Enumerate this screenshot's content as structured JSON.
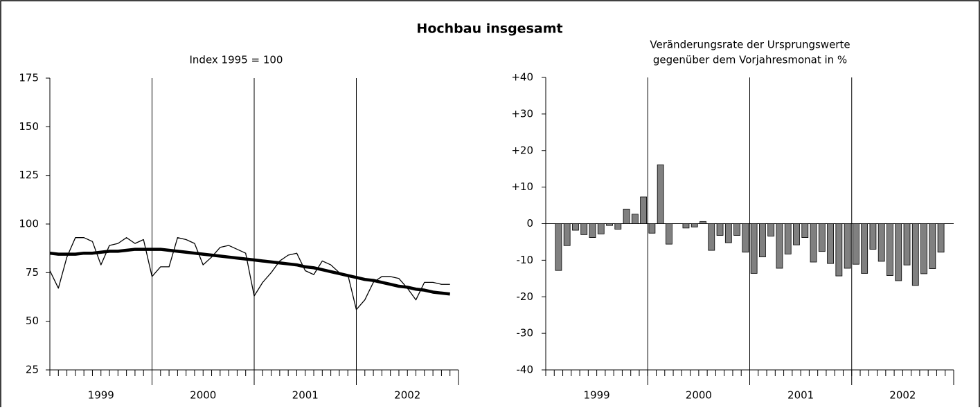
{
  "title": "Hochbau insgesamt",
  "chart_data": [
    {
      "type": "line",
      "title": [
        "Index 1995 = 100"
      ],
      "categories": [
        null,
        null,
        null,
        null,
        null,
        null,
        null,
        null,
        null,
        null,
        null,
        null,
        null,
        null,
        null,
        null,
        null,
        null,
        null,
        null,
        null,
        null,
        null,
        null,
        null,
        null,
        null,
        null,
        null,
        null,
        null,
        null,
        null,
        null,
        null,
        null,
        null,
        null,
        null,
        null,
        null,
        null,
        null,
        null,
        null,
        null,
        null,
        null
      ],
      "x_groups": [
        "1999",
        "2000",
        "2001",
        "2002"
      ],
      "series": [
        {
          "color": "#000000",
          "values": [
            76,
            67,
            83,
            93,
            93,
            91,
            79,
            89,
            90,
            93,
            90,
            92,
            73,
            78,
            78,
            93,
            92,
            90,
            79,
            83,
            88,
            89,
            87,
            85,
            63,
            70,
            75,
            81,
            84,
            85,
            76,
            74,
            81,
            79,
            75,
            74,
            56,
            61,
            70,
            73,
            73,
            72,
            67,
            61,
            70,
            70,
            69,
            69
          ]
        },
        {
          "color": "#000000",
          "values": [
            85,
            84.5,
            84.5,
            84.5,
            85,
            85,
            85.5,
            86,
            86,
            86.5,
            87,
            87,
            87,
            87,
            86.5,
            86,
            85.5,
            85,
            84.5,
            84,
            83.5,
            83,
            82.5,
            82,
            81.5,
            81,
            80.5,
            80,
            79.5,
            79,
            78,
            77.5,
            76.5,
            75.5,
            74.5,
            73.5,
            72.5,
            71.5,
            71,
            70,
            69,
            68,
            67.5,
            66.5,
            66,
            65,
            64.5,
            64
          ]
        }
      ],
      "ylim": [
        25,
        175
      ],
      "yticks": [
        25,
        50,
        75,
        100,
        125,
        150,
        175
      ]
    },
    {
      "type": "bar",
      "title": [
        "Veränderungsrate der Ursprungswerte",
        "gegenüber dem Vorjahresmonat in %"
      ],
      "categories": [
        null,
        null,
        null,
        null,
        null,
        null,
        null,
        null,
        null,
        null,
        null,
        null,
        null,
        null,
        null,
        null,
        null,
        null,
        null,
        null,
        null,
        null,
        null,
        null,
        null,
        null,
        null,
        null,
        null,
        null,
        null,
        null,
        null,
        null,
        null,
        null,
        null,
        null,
        null,
        null,
        null,
        null,
        null,
        null,
        null,
        null,
        null,
        null
      ],
      "x_groups": [
        "1999",
        "2000",
        "2001",
        "2002"
      ],
      "color": "#808080",
      "values": [
        null,
        -12.8,
        -6,
        -1.8,
        -3,
        -3.8,
        -2.8,
        -0.5,
        -1.5,
        4,
        2.6,
        7.3,
        -2.6,
        16.1,
        -5.6,
        0,
        -1.2,
        -0.9,
        0.6,
        -7.3,
        -3.2,
        -5.2,
        -3.2,
        -7.8,
        -13.6,
        -9.1,
        -3.4,
        -12.2,
        -8.3,
        -5.8,
        -3.8,
        -10.5,
        -7.6,
        -10.9,
        -14.3,
        -12.2,
        -11.1,
        -13.6,
        -7,
        -10.3,
        -14.2,
        -15.6,
        -11.3,
        -16.9,
        -13.7,
        -12.3,
        -7.8,
        null
      ],
      "ylim": [
        -40,
        40
      ],
      "yticks": [
        {
          "value": 40,
          "label": "+40"
        },
        {
          "value": 30,
          "label": "+30"
        },
        {
          "value": 20,
          "label": "+20"
        },
        {
          "value": 10,
          "label": "+10"
        },
        0,
        -10,
        -20,
        -30,
        -40
      ]
    }
  ]
}
